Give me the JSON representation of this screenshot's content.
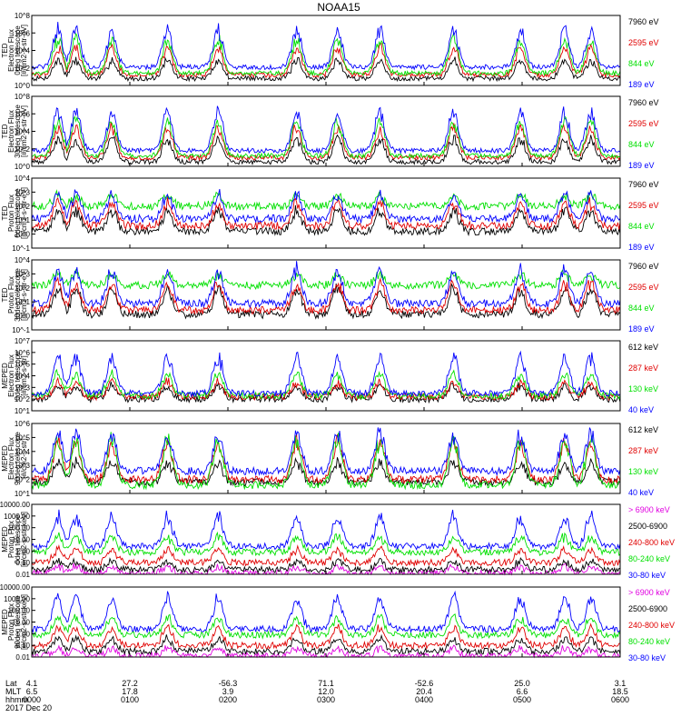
{
  "title": "NOAA15",
  "footer": {
    "row_labels": [
      "Lat",
      "MLT",
      "hhmm"
    ],
    "date": "2017 Dec 20",
    "ticks": [
      {
        "lat": "4.1",
        "mlt": "6.5",
        "hhmm": "0000"
      },
      {
        "lat": "27.2",
        "mlt": "17.8",
        "hhmm": "0100"
      },
      {
        "lat": "-56.3",
        "mlt": "3.9",
        "hhmm": "0200"
      },
      {
        "lat": "71.1",
        "mlt": "12.0",
        "hhmm": "0300"
      },
      {
        "lat": "-52.6",
        "mlt": "20.4",
        "hhmm": "0400"
      },
      {
        "lat": "25.0",
        "mlt": "6.6",
        "hhmm": "0500"
      },
      {
        "lat": "3.1",
        "mlt": "18.5",
        "hhmm": "0600"
      }
    ]
  },
  "colors": {
    "black": "#000000",
    "red": "#e00000",
    "green": "#00e000",
    "blue": "#0000ff",
    "magenta": "#e000e0"
  },
  "chart_data": [
    {
      "type": "line",
      "ylabel": [
        "TED",
        "Electron Flux",
        "0deg telescope",
        "[#/cm2-s-str-eV]"
      ],
      "y_scale": "log",
      "ylim_exp": [
        0,
        8
      ],
      "ytick_labels": [
        "10^0",
        "10^2",
        "10^4",
        "10^6",
        "10^8"
      ],
      "xlim_minutes": [
        0,
        360
      ],
      "series": [
        {
          "name": "7960 eV",
          "color": "black",
          "base": 0.8,
          "peak": 3.0
        },
        {
          "name": "2595 eV",
          "color": "red",
          "base": 1.2,
          "peak": 4.5
        },
        {
          "name": "844 eV",
          "color": "green",
          "base": 1.4,
          "peak": 5.5
        },
        {
          "name": "189 eV",
          "color": "blue",
          "base": 2.1,
          "peak": 6.6
        }
      ]
    },
    {
      "type": "line",
      "ylabel": [
        "TED",
        "Electron Flux",
        "30deg telescope",
        "[#/cm2-s-str-eV]"
      ],
      "y_scale": "log",
      "ylim_exp": [
        0,
        8
      ],
      "ytick_labels": [
        "10^0",
        "10^2",
        "10^4",
        "10^6",
        "10^8"
      ],
      "xlim_minutes": [
        0,
        360
      ],
      "series": [
        {
          "name": "7960 eV",
          "color": "black",
          "base": 0.5,
          "peak": 3.3
        },
        {
          "name": "2595 eV",
          "color": "red",
          "base": 1.0,
          "peak": 4.6
        },
        {
          "name": "844 eV",
          "color": "green",
          "base": 1.2,
          "peak": 5.4
        },
        {
          "name": "189 eV",
          "color": "blue",
          "base": 1.8,
          "peak": 6.5
        }
      ]
    },
    {
      "type": "line",
      "ylabel": [
        "TED",
        "Proton Flux",
        "0deg telescope",
        "[#/cm2-s-str-eV]"
      ],
      "y_scale": "log",
      "ylim_exp": [
        -1,
        4
      ],
      "ytick_labels": [
        "10^-1",
        "10^0",
        "10^1",
        "10^2",
        "10^3",
        "10^4"
      ],
      "xlim_minutes": [
        0,
        360
      ],
      "series": [
        {
          "name": "7960 eV",
          "color": "black",
          "base": 0.2,
          "peak": 1.8
        },
        {
          "name": "2595 eV",
          "color": "red",
          "base": 0.6,
          "peak": 2.3
        },
        {
          "name": "844 eV",
          "color": "green",
          "base": 2.0,
          "peak": 2.8
        },
        {
          "name": "189 eV",
          "color": "blue",
          "base": 1.1,
          "peak": 2.9
        }
      ]
    },
    {
      "type": "line",
      "ylabel": [
        "TED",
        "Proton Flux",
        "30deg telescope",
        "[#/cm2-s-str-eV]"
      ],
      "y_scale": "log",
      "ylim_exp": [
        -1,
        4
      ],
      "ytick_labels": [
        "10^-1",
        "10^0",
        "10^1",
        "10^2",
        "10^3",
        "10^4"
      ],
      "xlim_minutes": [
        0,
        360
      ],
      "series": [
        {
          "name": "7960 eV",
          "color": "black",
          "base": 0.1,
          "peak": 2.0
        },
        {
          "name": "2595 eV",
          "color": "red",
          "base": 0.4,
          "peak": 2.4
        },
        {
          "name": "844 eV",
          "color": "green",
          "base": 2.2,
          "peak": 3.0
        },
        {
          "name": "189 eV",
          "color": "blue",
          "base": 0.9,
          "peak": 3.4
        }
      ]
    },
    {
      "type": "line",
      "ylabel": [
        "MEPED",
        "Electron Flux",
        "0deg telescope",
        "[#/cm2-s-str]"
      ],
      "y_scale": "log",
      "ylim_exp": [
        1,
        7
      ],
      "ytick_labels": [
        "10^1",
        "10^2",
        "10^3",
        "10^4",
        "10^5",
        "10^6",
        "10^7"
      ],
      "xlim_minutes": [
        0,
        360
      ],
      "series": [
        {
          "name": "612 keV",
          "color": "black",
          "base": 2.0,
          "peak": 3.2
        },
        {
          "name": "287 keV",
          "color": "red",
          "base": 2.2,
          "peak": 3.5
        },
        {
          "name": "130 keV",
          "color": "green",
          "base": 2.3,
          "peak": 4.3
        },
        {
          "name": "40 keV",
          "color": "blue",
          "base": 2.5,
          "peak": 5.8
        }
      ]
    },
    {
      "type": "line",
      "ylabel": [
        "MEPED",
        "Electron Flux",
        "90deg telescope",
        "[#/cm2-s-str]"
      ],
      "y_scale": "log",
      "ylim_exp": [
        1,
        6
      ],
      "ytick_labels": [
        "10^1",
        "10^2",
        "10^3",
        "10^4",
        "10^5",
        "10^6"
      ],
      "xlim_minutes": [
        0,
        360
      ],
      "series": [
        {
          "name": "612 keV",
          "color": "black",
          "base": 1.8,
          "peak": 3.3
        },
        {
          "name": "287 keV",
          "color": "red",
          "base": 2.0,
          "peak": 4.8
        },
        {
          "name": "130 keV",
          "color": "green",
          "base": 1.6,
          "peak": 5.0
        },
        {
          "name": "40 keV",
          "color": "blue",
          "base": 2.6,
          "peak": 5.4
        }
      ]
    },
    {
      "type": "line",
      "ylabel": [
        "MEPED",
        "Proton Flux",
        "0deg telescope",
        "[#/cm2-s-str-keV]"
      ],
      "y_scale": "log",
      "ylim_exp": [
        -2,
        4
      ],
      "ytick_labels": [
        "0.01",
        "0.10",
        "1.00",
        "10.00",
        "100.00",
        "1000.00",
        "10000.00"
      ],
      "xlim_minutes": [
        0,
        360
      ],
      "series": [
        {
          "name": "> 6900 keV",
          "color": "magenta",
          "base": -1.9,
          "peak": -1.3
        },
        {
          "name": "2500-6900",
          "color": "black",
          "base": -1.6,
          "peak": -0.8
        },
        {
          "name": "240-800 keV",
          "color": "red",
          "base": -1.0,
          "peak": 0.2
        },
        {
          "name": "80-240 keV",
          "color": "green",
          "base": -0.1,
          "peak": 1.3
        },
        {
          "name": "30-80 keV",
          "color": "blue",
          "base": 0.4,
          "peak": 3.1
        }
      ]
    },
    {
      "type": "line",
      "ylabel": [
        "MEPED",
        "Proton Flux",
        "90deg telescope",
        "[#/cm2-s-str-keV]"
      ],
      "y_scale": "log",
      "ylim_exp": [
        -2,
        4
      ],
      "ytick_labels": [
        "0.01",
        "0.10",
        "1.00",
        "10.00",
        "100.00",
        "1000.00",
        "10000.00"
      ],
      "xlim_minutes": [
        0,
        360
      ],
      "series": [
        {
          "name": "> 6900 keV",
          "color": "magenta",
          "base": -1.9,
          "peak": -1.2
        },
        {
          "name": "2500-6900",
          "color": "black",
          "base": -1.5,
          "peak": -0.4
        },
        {
          "name": "240-800 keV",
          "color": "red",
          "base": -1.0,
          "peak": 0.6
        },
        {
          "name": "80-240 keV",
          "color": "green",
          "base": -0.1,
          "peak": 1.5
        },
        {
          "name": "30-80 keV",
          "color": "blue",
          "base": 0.4,
          "peak": 3.3
        }
      ]
    }
  ]
}
